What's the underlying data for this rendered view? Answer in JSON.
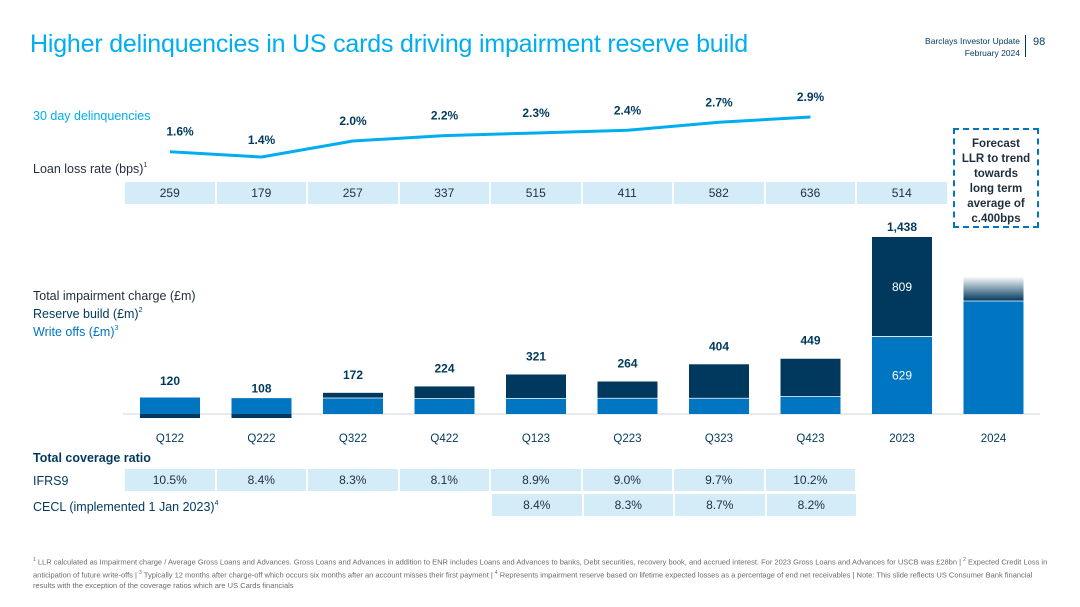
{
  "header": {
    "title": "Higher delinquencies in US cards driving impairment reserve build",
    "org": "Barclays Investor Update",
    "date": "February 2024",
    "page_number": "98"
  },
  "labels": {
    "delinquencies": "30 day delinquencies",
    "loan_loss_rate": "Loan loss rate (bps)",
    "loan_loss_rate_note": "1",
    "total_impairment": "Total impairment charge (£m)",
    "reserve_build": "Reserve build (£m)",
    "reserve_build_note": "2",
    "write_offs": "Write offs (£m)",
    "write_offs_note": "3",
    "total_coverage": "Total coverage ratio",
    "ifrs9": "IFRS9",
    "cecl": "CECL (implemented 1 Jan 2023)",
    "cecl_note": "4"
  },
  "forecast": {
    "lines": [
      "Forecast",
      "LLR to trend",
      "towards",
      "long term",
      "average of",
      "c.400bps"
    ]
  },
  "colors": {
    "cyan": "#00aeef",
    "navy": "#00395d",
    "blue": "#0075c1",
    "cell_bg": "#d4ecf8"
  },
  "chart_data": [
    {
      "type": "line",
      "title": "30 day delinquencies",
      "categories": [
        "Q122",
        "Q222",
        "Q322",
        "Q422",
        "Q123",
        "Q223",
        "Q323",
        "Q423"
      ],
      "values": [
        1.6,
        1.4,
        2.0,
        2.2,
        2.3,
        2.4,
        2.7,
        2.9
      ],
      "value_labels": [
        "1.6%",
        "1.4%",
        "2.0%",
        "2.2%",
        "2.3%",
        "2.4%",
        "2.7%",
        "2.9%"
      ],
      "unit": "%"
    },
    {
      "type": "table",
      "title": "Loan loss rate (bps)",
      "categories": [
        "Q122",
        "Q222",
        "Q322",
        "Q422",
        "Q123",
        "Q223",
        "Q323",
        "Q423",
        "2023"
      ],
      "values": [
        "259",
        "179",
        "257",
        "337",
        "515",
        "411",
        "582",
        "636",
        "514"
      ]
    },
    {
      "type": "bar",
      "stacked": true,
      "title": "Total impairment charge (£m)",
      "categories": [
        "Q122",
        "Q222",
        "Q322",
        "Q422",
        "Q123",
        "Q223",
        "Q323",
        "Q423",
        "2023",
        "2024"
      ],
      "totals": [
        120,
        108,
        172,
        224,
        321,
        264,
        404,
        449,
        1438,
        null
      ],
      "total_labels": [
        "120",
        "108",
        "172",
        "224",
        "321",
        "264",
        "404",
        "449",
        "1,438",
        ""
      ],
      "series": [
        {
          "name": "Write offs (£m)",
          "values": [
            137,
            132,
            130,
            125,
            127,
            128,
            128,
            142,
            629,
            918
          ]
        },
        {
          "name": "Reserve build (£m)",
          "values": [
            -17,
            -24,
            42,
            99,
            194,
            136,
            276,
            307,
            809,
            200
          ]
        }
      ],
      "segment_labels": {
        "2023": [
          "629",
          "809"
        ]
      },
      "forecast_category": "2024",
      "ylim": [
        -40,
        1450
      ]
    },
    {
      "type": "table",
      "title": "Total coverage ratio",
      "categories": [
        "Q122",
        "Q222",
        "Q322",
        "Q422",
        "Q123",
        "Q223",
        "Q323",
        "Q423"
      ],
      "rows": [
        {
          "name": "IFRS9",
          "values": [
            "10.5%",
            "8.4%",
            "8.3%",
            "8.1%",
            "8.9%",
            "9.0%",
            "9.7%",
            "10.2%"
          ]
        },
        {
          "name": "CECL (implemented 1 Jan 2023)",
          "values": [
            "",
            "",
            "",
            "",
            "8.4%",
            "8.3%",
            "8.7%",
            "8.2%"
          ]
        }
      ]
    }
  ],
  "footnote": {
    "n1": "1",
    "t1": "LLR calculated as Impairment charge / Average Gross Loans and Advances. Gross Loans and Advances in addition to ENR includes Loans and Advances to banks, Debt securities, recovery book, and accrued interest. For 2023 Gross Loans and Advances for USCB was £28bn |",
    "n2": "2",
    "t2": "Expected Credit Loss in anticipation of future write-offs |",
    "n3": "3",
    "t3": "Typically 12 months after charge-off which occurs six months after an account misses their first payment |",
    "n4": "4",
    "t4": "Represents impairment reserve based on lifetime expected losses as a percentage of end net receivables | Note: This slide reflects US Consumer Bank financial results with the exception of the coverage ratios which are US Cards financials"
  }
}
